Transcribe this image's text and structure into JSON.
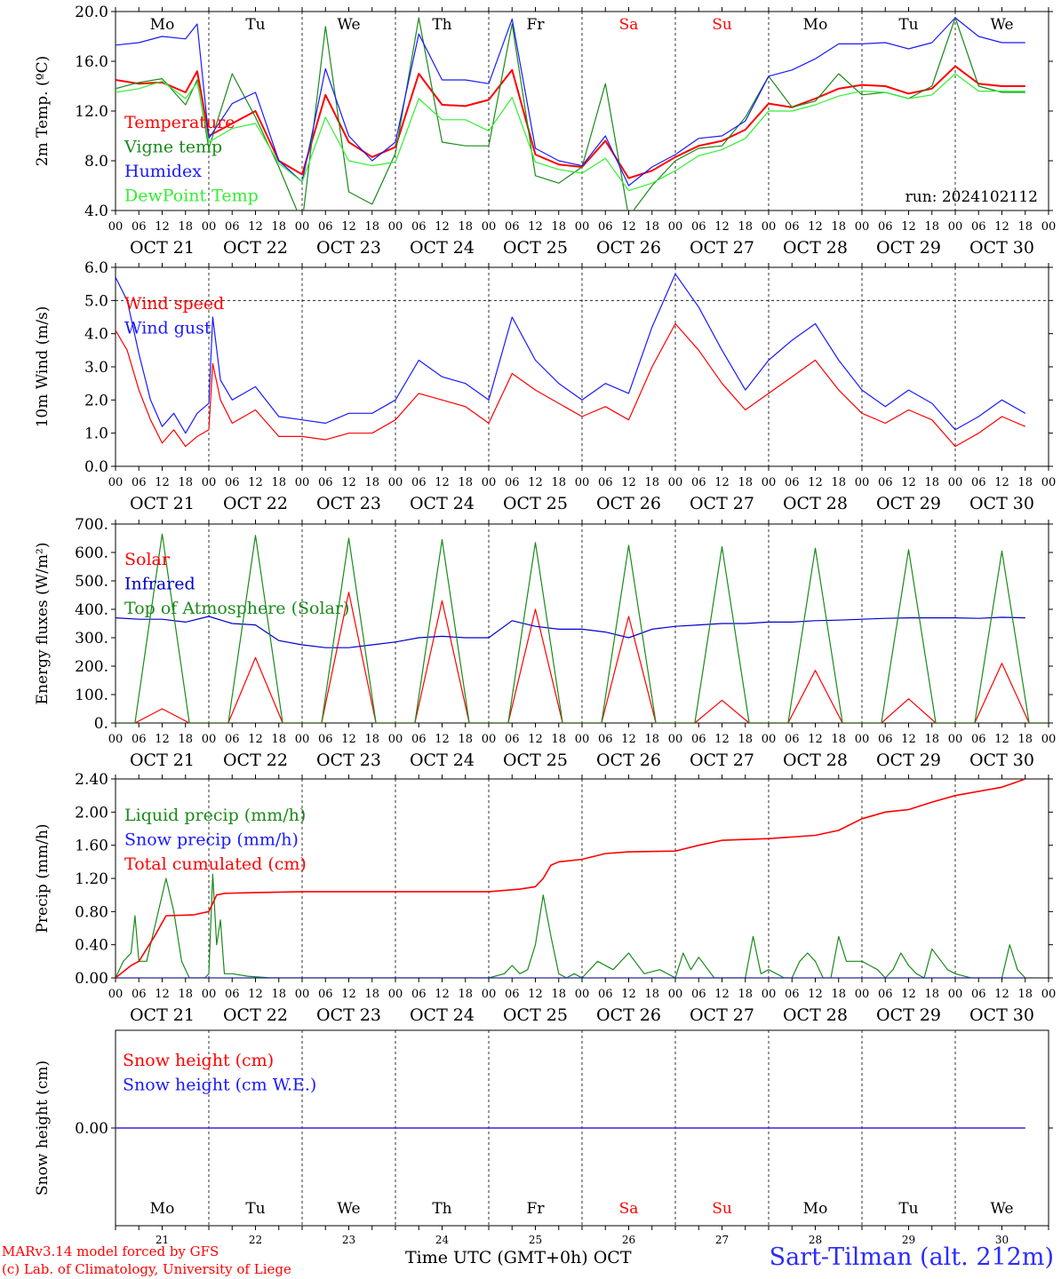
{
  "footer": {
    "model": "MARv3.14 model forced by GFS",
    "credit": "(c) Lab. of Climatology, University of Liege",
    "xtitle": "Time UTC (GMT+0h) OCT",
    "station": "Sart-Tilman (alt. 212m)",
    "run": "run: 2024102112"
  },
  "axis_common": {
    "hour_ticks": [
      "00",
      "06",
      "12",
      "18"
    ],
    "date_labels": [
      "OCT 21",
      "OCT 22",
      "OCT 23",
      "OCT 24",
      "OCT 25",
      "OCT 26",
      "OCT 27",
      "OCT 28",
      "OCT 29",
      "OCT 30"
    ],
    "day_names": [
      "Mo",
      "Tu",
      "We",
      "Th",
      "Fr",
      "Sa",
      "Su",
      "Mo",
      "Tu",
      "We"
    ],
    "weekend_days": [
      5,
      6
    ],
    "day_numbers": [
      "21",
      "22",
      "23",
      "24",
      "25",
      "26",
      "27",
      "28",
      "29",
      "30"
    ]
  },
  "colors": {
    "temperature": "#ff0000",
    "vigne": "#1a8a1a",
    "humidex": "#1a1aff",
    "dewpoint": "#33ee33",
    "wind_speed": "#ff0000",
    "wind_gust": "#1a1aff",
    "solar": "#ff0000",
    "infrared": "#0000cc",
    "toa": "#1a8a1a",
    "liquid": "#1a8a1a",
    "snow": "#1a1aff",
    "cumul": "#ff0000",
    "snow_height": "#ff0000",
    "snow_we": "#1a1aff",
    "weekday": "#000000",
    "weekend": "#ff0000"
  },
  "chart_data": [
    {
      "id": "temp",
      "type": "line",
      "ylabel": "2m Temp. (ºC)",
      "ylim": [
        4,
        20
      ],
      "yticks": [
        "4.0",
        "8.0",
        "12.0",
        "16.0",
        "20.0"
      ],
      "x_unit": "hours since OCT 21 00 UTC",
      "series": [
        {
          "name": "Temperature",
          "color": "#ff0000",
          "x": [
            0,
            6,
            12,
            18,
            21,
            24,
            30,
            36,
            42,
            48,
            54,
            60,
            66,
            72,
            78,
            84,
            90,
            96,
            102,
            108,
            114,
            120,
            126,
            132,
            138,
            144,
            150,
            156,
            162,
            168,
            174,
            180,
            186,
            192,
            198,
            204,
            210,
            216,
            222,
            228,
            234
          ],
          "y": [
            14.5,
            14.2,
            14.3,
            13.5,
            15.2,
            10.0,
            11.0,
            12.0,
            8.0,
            6.9,
            13.3,
            9.5,
            8.3,
            9.1,
            15.0,
            12.5,
            12.4,
            12.9,
            15.3,
            8.5,
            7.7,
            7.5,
            9.6,
            6.6,
            7.2,
            8.3,
            9.2,
            9.6,
            10.5,
            12.6,
            12.3,
            13.0,
            13.8,
            14.1,
            14.0,
            13.4,
            13.8,
            15.6,
            14.2,
            14.0,
            14.0
          ]
        },
        {
          "name": "Vigne temp",
          "color": "#1a8a1a",
          "x": [
            0,
            6,
            12,
            18,
            21,
            24,
            30,
            36,
            42,
            48,
            54,
            60,
            66,
            72,
            78,
            84,
            90,
            96,
            102,
            108,
            114,
            120,
            126,
            132,
            138,
            144,
            150,
            156,
            162,
            168,
            174,
            180,
            186,
            192,
            198,
            204,
            210,
            216,
            222,
            228,
            234
          ],
          "y": [
            13.8,
            14.3,
            14.6,
            12.5,
            14.5,
            9.0,
            15.0,
            11.5,
            7.5,
            3.0,
            18.8,
            5.5,
            4.5,
            8.6,
            19.5,
            9.5,
            9.2,
            9.2,
            19.0,
            6.8,
            6.2,
            7.5,
            14.2,
            3.5,
            6.0,
            8.0,
            9.0,
            9.2,
            11.5,
            14.8,
            12.3,
            12.8,
            15.0,
            13.3,
            13.5,
            13.0,
            14.0,
            19.5,
            14.0,
            13.5,
            13.5
          ]
        },
        {
          "name": "Humidex",
          "color": "#1a1aff",
          "x": [
            0,
            6,
            12,
            18,
            21,
            24,
            30,
            36,
            42,
            48,
            54,
            60,
            66,
            72,
            78,
            84,
            90,
            96,
            102,
            108,
            114,
            120,
            126,
            132,
            138,
            144,
            150,
            156,
            162,
            168,
            174,
            180,
            186,
            192,
            198,
            204,
            210,
            216,
            222,
            228,
            234
          ],
          "y": [
            17.3,
            17.5,
            18.0,
            17.8,
            19.0,
            9.8,
            12.6,
            13.5,
            8.0,
            6.3,
            15.4,
            10.0,
            8.0,
            9.5,
            18.2,
            14.5,
            14.5,
            14.2,
            19.4,
            9.0,
            8.0,
            7.6,
            10.0,
            6.0,
            7.5,
            8.5,
            9.8,
            10.0,
            11.2,
            14.8,
            15.3,
            16.2,
            17.4,
            17.4,
            17.5,
            17.0,
            17.5,
            19.5,
            18.0,
            17.5,
            17.5
          ]
        },
        {
          "name": "DewPoint Temp",
          "color": "#33ee33",
          "x": [
            0,
            6,
            12,
            18,
            21,
            24,
            30,
            36,
            42,
            48,
            54,
            60,
            66,
            72,
            78,
            84,
            90,
            96,
            102,
            108,
            114,
            120,
            126,
            132,
            138,
            144,
            150,
            156,
            162,
            168,
            174,
            180,
            186,
            192,
            198,
            204,
            210,
            216,
            222,
            228,
            234
          ],
          "y": [
            13.5,
            13.8,
            14.4,
            13.0,
            14.3,
            9.5,
            10.6,
            11.0,
            7.8,
            6.3,
            11.5,
            8.0,
            7.6,
            7.9,
            13.0,
            11.3,
            11.3,
            10.4,
            13.1,
            7.9,
            7.3,
            7.0,
            8.2,
            5.6,
            6.2,
            7.2,
            8.4,
            8.9,
            9.8,
            12.0,
            12.0,
            12.5,
            13.2,
            13.6,
            13.5,
            13.0,
            13.3,
            15.0,
            13.6,
            13.6,
            13.6
          ]
        }
      ]
    },
    {
      "id": "wind",
      "type": "line",
      "ylabel": "10m Wind (m/s)",
      "ylim": [
        0,
        6
      ],
      "yticks": [
        "0.0",
        "1.0",
        "2.0",
        "3.0",
        "4.0",
        "5.0",
        "6.0"
      ],
      "reference_line": 5.0,
      "series": [
        {
          "name": "Wind speed",
          "color": "#ff0000",
          "x": [
            0,
            3,
            6,
            9,
            12,
            15,
            18,
            21,
            24,
            25,
            27,
            30,
            33,
            36,
            42,
            48,
            54,
            60,
            66,
            72,
            78,
            84,
            90,
            96,
            102,
            108,
            114,
            120,
            126,
            132,
            138,
            144,
            150,
            156,
            162,
            168,
            174,
            180,
            186,
            192,
            198,
            204,
            210,
            216,
            222,
            228,
            234
          ],
          "y": [
            4.1,
            3.5,
            2.3,
            1.4,
            0.7,
            1.1,
            0.6,
            0.9,
            1.1,
            3.1,
            2.0,
            1.3,
            1.5,
            1.7,
            0.9,
            0.9,
            0.8,
            1.0,
            1.0,
            1.4,
            2.2,
            2.0,
            1.8,
            1.3,
            2.8,
            2.3,
            1.9,
            1.5,
            1.8,
            1.4,
            3.0,
            4.3,
            3.5,
            2.5,
            1.7,
            2.2,
            2.7,
            3.2,
            2.3,
            1.6,
            1.3,
            1.7,
            1.4,
            0.6,
            1.0,
            1.5,
            1.2
          ]
        },
        {
          "name": "Wind gust",
          "color": "#1a1aff",
          "x": [
            0,
            3,
            6,
            9,
            12,
            15,
            18,
            21,
            24,
            25,
            27,
            30,
            33,
            36,
            42,
            48,
            54,
            60,
            66,
            72,
            78,
            84,
            90,
            96,
            102,
            108,
            114,
            120,
            126,
            132,
            138,
            144,
            150,
            156,
            162,
            168,
            174,
            180,
            186,
            192,
            198,
            204,
            210,
            216,
            222,
            228,
            234
          ],
          "y": [
            5.7,
            5.0,
            3.4,
            2.0,
            1.2,
            1.6,
            1.0,
            1.6,
            1.9,
            4.5,
            2.6,
            2.0,
            2.2,
            2.4,
            1.5,
            1.4,
            1.3,
            1.6,
            1.6,
            2.0,
            3.2,
            2.7,
            2.5,
            2.0,
            4.5,
            3.2,
            2.5,
            2.0,
            2.5,
            2.2,
            4.2,
            5.8,
            4.8,
            3.5,
            2.3,
            3.2,
            3.8,
            4.3,
            3.2,
            2.3,
            1.8,
            2.3,
            1.9,
            1.1,
            1.5,
            2.0,
            1.6
          ]
        }
      ]
    },
    {
      "id": "energy",
      "type": "line",
      "ylabel": "Energy fluxes (W/m²)",
      "ylim": [
        0,
        700
      ],
      "yticks": [
        "0.",
        "100.",
        "200.",
        "300.",
        "400.",
        "500.",
        "600.",
        "700."
      ],
      "series": [
        {
          "name": "Solar",
          "color": "#ff0000",
          "peaks": [
            50,
            230,
            460,
            430,
            400,
            375,
            80,
            185,
            85,
            210
          ]
        },
        {
          "name": "Infrared",
          "color": "#0000cc",
          "x": [
            0,
            6,
            12,
            18,
            24,
            30,
            36,
            42,
            48,
            54,
            60,
            66,
            72,
            78,
            84,
            90,
            96,
            102,
            108,
            114,
            120,
            126,
            132,
            138,
            144,
            150,
            156,
            162,
            168,
            174,
            180,
            186,
            192,
            198,
            204,
            210,
            216,
            222,
            228,
            234
          ],
          "y": [
            370,
            365,
            365,
            355,
            375,
            350,
            345,
            290,
            275,
            265,
            265,
            275,
            285,
            300,
            305,
            300,
            300,
            360,
            340,
            330,
            330,
            320,
            300,
            330,
            340,
            345,
            350,
            350,
            355,
            355,
            360,
            362,
            365,
            368,
            370,
            370,
            370,
            368,
            372,
            370
          ]
        },
        {
          "name": "Top of Atmosphere (Solar)",
          "color": "#1a8a1a",
          "peaks": [
            665,
            660,
            650,
            645,
            635,
            625,
            620,
            615,
            610,
            605
          ]
        }
      ]
    },
    {
      "id": "precip",
      "type": "line",
      "ylabel": "Precip (mm/h)",
      "ylim": [
        0,
        2.4
      ],
      "yticks": [
        "0.00",
        "0.40",
        "0.80",
        "1.20",
        "1.60",
        "2.00",
        "2.40"
      ],
      "series": [
        {
          "name": "Liquid precip (mm/h)",
          "color": "#1a8a1a",
          "x": [
            0,
            2,
            4,
            5,
            6,
            8,
            10,
            12,
            13,
            15,
            17,
            19,
            21,
            23,
            24,
            25,
            26,
            27,
            28,
            30,
            34,
            40,
            48,
            96,
            100,
            102,
            104,
            106,
            108,
            110,
            112,
            114,
            116,
            118,
            120,
            124,
            128,
            132,
            136,
            140,
            144,
            146,
            148,
            150,
            154,
            158,
            162,
            164,
            166,
            168,
            172,
            174,
            176,
            178,
            180,
            182,
            184,
            186,
            188,
            192,
            194,
            196,
            198,
            200,
            202,
            204,
            206,
            208,
            210,
            214,
            216,
            220,
            224,
            228,
            230,
            232,
            234
          ],
          "y": [
            0.0,
            0.2,
            0.3,
            0.75,
            0.2,
            0.2,
            0.6,
            1.0,
            1.2,
            0.8,
            0.2,
            0.0,
            0.0,
            0.0,
            0.05,
            1.25,
            0.4,
            0.7,
            0.05,
            0.05,
            0.02,
            0.0,
            0.0,
            0.0,
            0.05,
            0.15,
            0.05,
            0.1,
            0.4,
            1.0,
            0.5,
            0.05,
            0.0,
            0.05,
            0.0,
            0.2,
            0.1,
            0.3,
            0.05,
            0.1,
            0.0,
            0.3,
            0.1,
            0.25,
            0.0,
            0.0,
            0.0,
            0.5,
            0.05,
            0.1,
            0.0,
            0.0,
            0.2,
            0.3,
            0.2,
            0.0,
            0.0,
            0.5,
            0.2,
            0.2,
            0.15,
            0.1,
            0.0,
            0.1,
            0.3,
            0.15,
            0.05,
            0.0,
            0.35,
            0.1,
            0.05,
            0.0,
            0.0,
            0.0,
            0.4,
            0.1,
            0.0
          ]
        },
        {
          "name": "Snow precip (mm/h)",
          "color": "#1a1aff",
          "x": [
            0,
            234
          ],
          "y": [
            0.0,
            0.0
          ]
        },
        {
          "name": "Total cumulated (cm)",
          "color": "#ff0000",
          "x": [
            0,
            4,
            6,
            10,
            13,
            20,
            24,
            26,
            28,
            36,
            48,
            72,
            96,
            104,
            108,
            110,
            112,
            114,
            120,
            126,
            132,
            144,
            150,
            156,
            168,
            180,
            186,
            192,
            198,
            204,
            210,
            216,
            228,
            234
          ],
          "y": [
            0.0,
            0.15,
            0.2,
            0.5,
            0.75,
            0.76,
            0.8,
            1.0,
            1.02,
            1.03,
            1.04,
            1.04,
            1.04,
            1.07,
            1.1,
            1.2,
            1.36,
            1.4,
            1.43,
            1.5,
            1.52,
            1.53,
            1.6,
            1.66,
            1.68,
            1.72,
            1.78,
            1.92,
            2.0,
            2.03,
            2.12,
            2.2,
            2.3,
            2.4
          ]
        }
      ]
    },
    {
      "id": "snow",
      "type": "line",
      "ylabel": "Snow height (cm)",
      "ylim": [
        -1,
        1
      ],
      "yticks": [
        "0.00"
      ],
      "series": [
        {
          "name": "Snow height (cm)",
          "color": "#ff0000",
          "x": [
            0,
            234
          ],
          "y": [
            0,
            0
          ]
        },
        {
          "name": "Snow height (cm W.E.)",
          "color": "#1a1aff",
          "x": [
            0,
            234
          ],
          "y": [
            0,
            0
          ]
        }
      ]
    }
  ]
}
